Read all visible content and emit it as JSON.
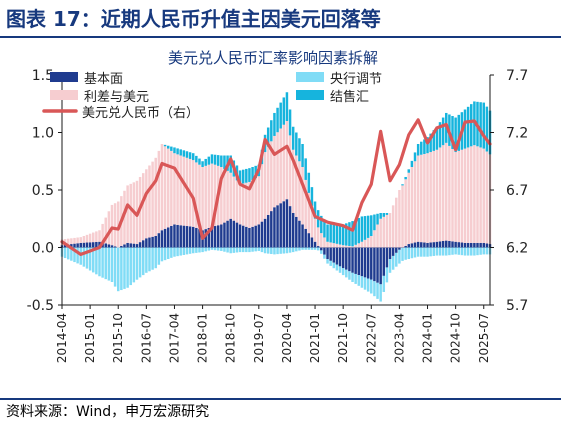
{
  "figure": {
    "title": "图表 17：近期人民币升值主因美元回落等",
    "source": "资料来源：Wind，申万宏源研究"
  },
  "colors": {
    "brand_blue": "#17397e",
    "base": "#1f3b8f",
    "rate_diff": "#f6cdd0",
    "usd": "#d95757",
    "pboc": "#80dcf6",
    "fx_settle": "#16b4dd"
  },
  "chart_data": {
    "type": "bar",
    "title": "美元兑人民币汇率影响因素拆解",
    "ylim": [
      -0.5,
      1.5
    ],
    "y_ticks": [
      -0.5,
      0.0,
      0.5,
      1.0,
      1.5
    ],
    "y_tick_labels": [
      "-0.5",
      "0.0",
      "0.5",
      "1.0",
      "1.5"
    ],
    "y2lim": [
      5.7,
      7.7
    ],
    "y2_ticks": [
      5.7,
      6.2,
      6.7,
      7.2,
      7.7
    ],
    "y2_tick_labels": [
      "5.7",
      "6.2",
      "6.7",
      "7.2",
      "7.7"
    ],
    "x_tick_labels": [
      "2014-04",
      "2015-01",
      "2015-10",
      "2016-07",
      "2017-04",
      "2018-01",
      "2018-10",
      "2019-07",
      "2020-04",
      "2021-01",
      "2021-10",
      "2022-07",
      "2023-04",
      "2024-01",
      "2024-10",
      "2025-07"
    ],
    "legend": [
      "基本面",
      "利差与美元",
      "美元兑人民币（右）",
      "央行调节",
      "结售汇"
    ],
    "legend_position": "top",
    "anchor_months": [
      "2014-04",
      "2014-10",
      "2015-04",
      "2015-08",
      "2015-10",
      "2016-01",
      "2016-04",
      "2016-07",
      "2016-10",
      "2016-12",
      "2017-04",
      "2017-10",
      "2018-01",
      "2018-04",
      "2018-07",
      "2018-10",
      "2019-01",
      "2019-04",
      "2019-07",
      "2019-09",
      "2019-12",
      "2020-04",
      "2020-06",
      "2020-09",
      "2021-01",
      "2021-05",
      "2021-10",
      "2022-01",
      "2022-04",
      "2022-07",
      "2022-10",
      "2023-01",
      "2023-04",
      "2023-07",
      "2023-10",
      "2024-01",
      "2024-04",
      "2024-07",
      "2024-10",
      "2025-01",
      "2025-04",
      "2025-07",
      "2025-09"
    ],
    "series": [
      {
        "name": "美元兑人民币（右）",
        "axis": "right",
        "type": "line",
        "values": [
          6.25,
          6.14,
          6.2,
          6.37,
          6.36,
          6.57,
          6.48,
          6.67,
          6.78,
          6.93,
          6.89,
          6.63,
          6.28,
          6.37,
          6.8,
          6.97,
          6.75,
          6.71,
          6.88,
          7.14,
          7.01,
          7.08,
          6.96,
          6.75,
          6.47,
          6.42,
          6.39,
          6.35,
          6.59,
          6.75,
          7.21,
          6.78,
          6.92,
          7.18,
          7.31,
          7.11,
          7.24,
          7.27,
          7.05,
          7.29,
          7.3,
          7.17,
          7.1
        ]
      },
      {
        "name": "基本面",
        "type": "bar",
        "values": [
          0.02,
          0.04,
          0.05,
          0.02,
          0.0,
          0.04,
          0.03,
          0.08,
          0.1,
          0.15,
          0.2,
          0.18,
          0.15,
          0.18,
          0.2,
          0.25,
          0.2,
          0.17,
          0.2,
          0.25,
          0.35,
          0.42,
          0.3,
          0.2,
          0.05,
          -0.1,
          -0.18,
          -0.22,
          -0.25,
          -0.28,
          -0.32,
          -0.1,
          -0.02,
          0.03,
          0.05,
          0.04,
          0.05,
          0.06,
          0.05,
          0.04,
          0.04,
          0.04,
          0.03
        ]
      },
      {
        "name": "利差与美元",
        "type": "bar",
        "values": [
          0.05,
          0.05,
          0.1,
          0.35,
          0.4,
          0.5,
          0.55,
          0.6,
          0.68,
          0.75,
          0.62,
          0.58,
          0.55,
          0.55,
          0.5,
          0.4,
          0.35,
          0.4,
          0.42,
          0.58,
          0.62,
          0.68,
          0.55,
          0.5,
          0.2,
          0.05,
          0.02,
          0.01,
          0.05,
          0.1,
          0.25,
          0.3,
          0.5,
          0.62,
          0.75,
          0.78,
          0.8,
          0.85,
          0.78,
          0.82,
          0.85,
          0.82,
          0.78
        ]
      },
      {
        "name": "央行调节",
        "type": "bar",
        "values": [
          -0.08,
          -0.15,
          -0.25,
          -0.3,
          -0.38,
          -0.35,
          -0.28,
          -0.22,
          -0.18,
          -0.12,
          -0.08,
          -0.05,
          -0.04,
          -0.02,
          -0.03,
          -0.05,
          -0.04,
          -0.04,
          -0.03,
          -0.05,
          -0.06,
          -0.05,
          -0.04,
          -0.02,
          -0.02,
          -0.04,
          -0.06,
          -0.08,
          -0.1,
          -0.12,
          -0.15,
          -0.12,
          -0.12,
          -0.1,
          -0.08,
          -0.08,
          -0.07,
          -0.07,
          -0.06,
          -0.07,
          -0.07,
          -0.06,
          -0.06
        ]
      },
      {
        "name": "结售汇",
        "type": "bar",
        "values": [
          0.0,
          0.0,
          0.0,
          0.0,
          0.0,
          0.0,
          0.0,
          0.0,
          0.0,
          0.0,
          0.05,
          0.06,
          0.05,
          0.08,
          0.1,
          0.15,
          0.12,
          0.12,
          0.1,
          0.15,
          0.2,
          0.25,
          0.2,
          0.2,
          0.15,
          0.15,
          0.18,
          0.22,
          0.22,
          0.18,
          0.05,
          0.0,
          0.0,
          0.03,
          0.1,
          0.14,
          0.2,
          0.26,
          0.3,
          0.34,
          0.38,
          0.4,
          0.38
        ]
      }
    ]
  }
}
